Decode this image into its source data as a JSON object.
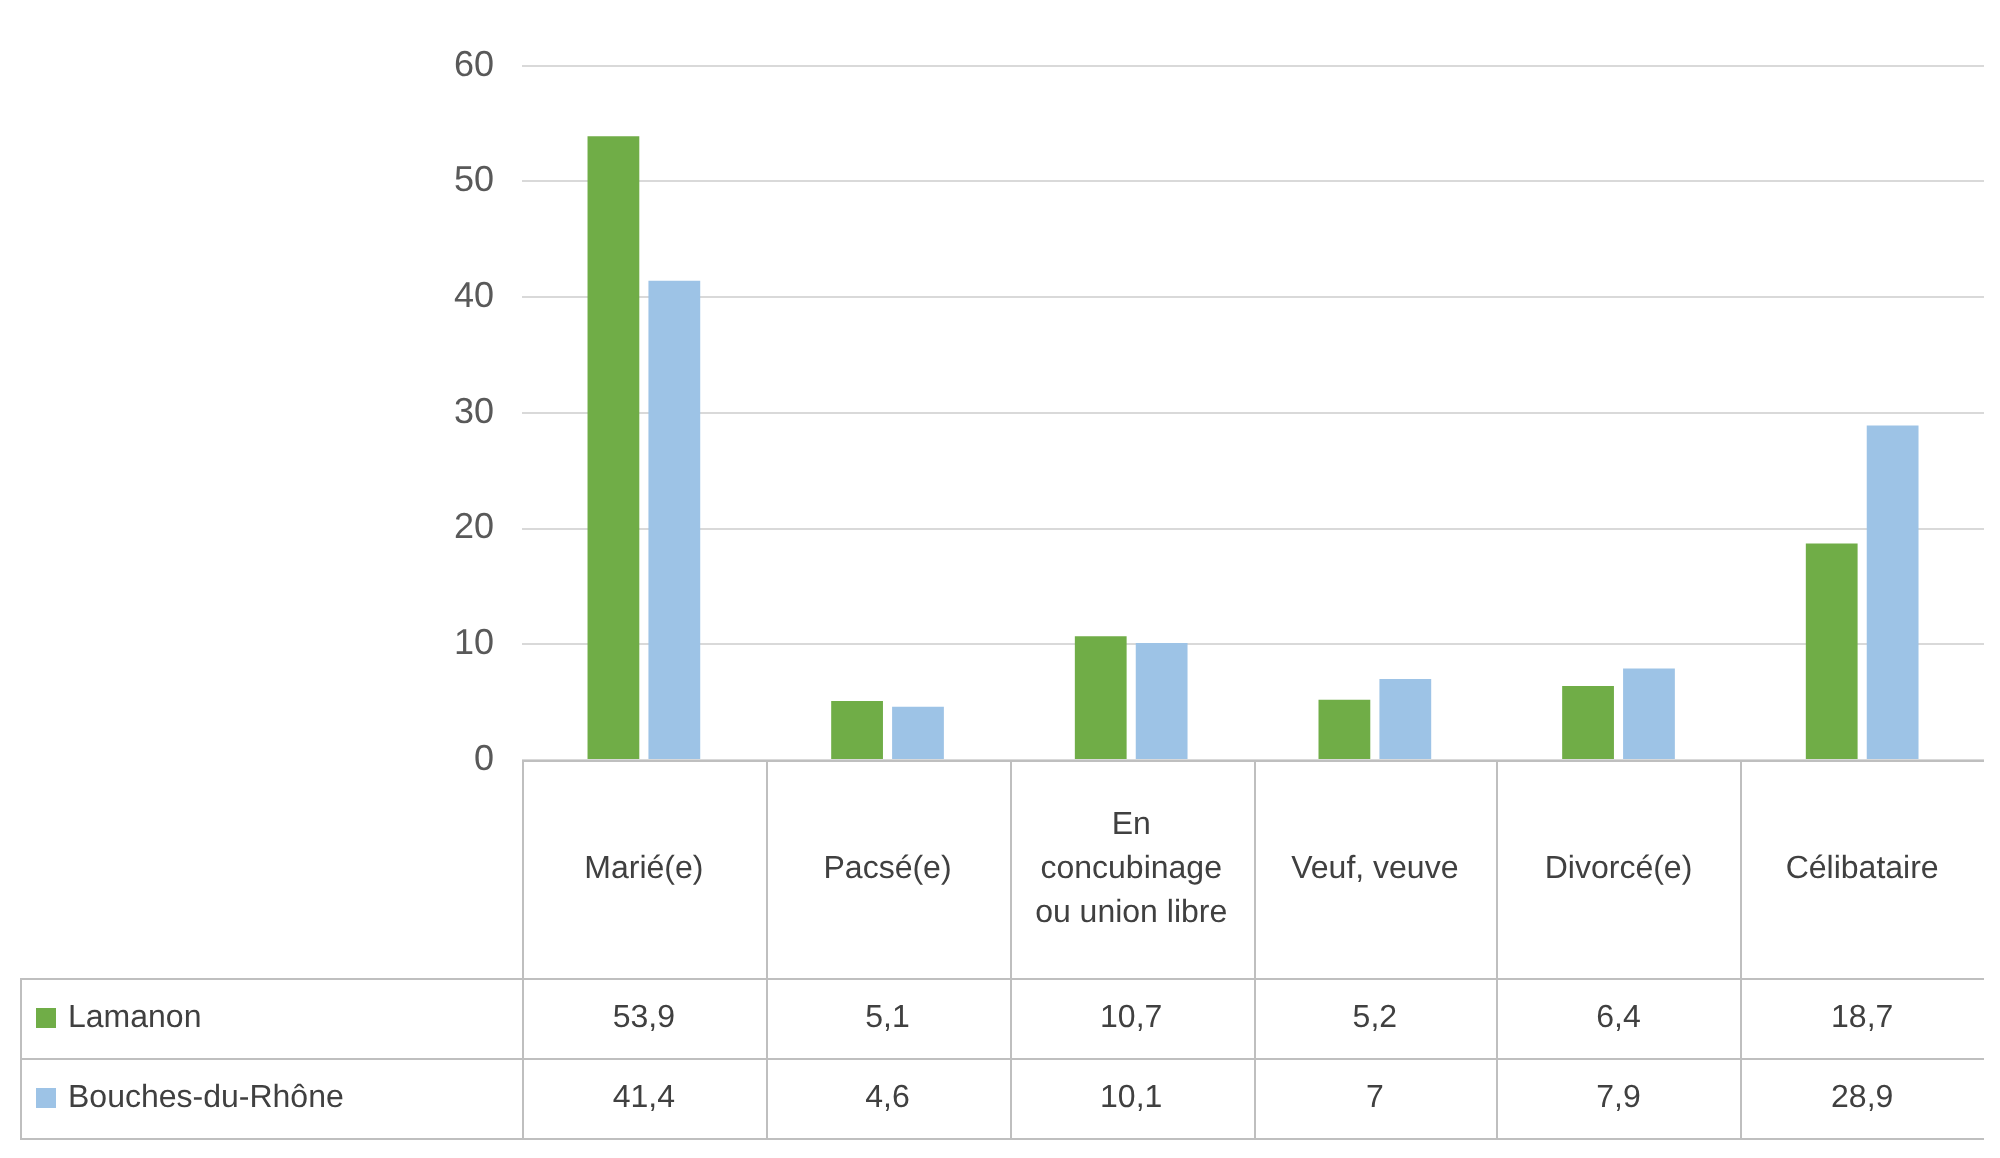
{
  "chart_data": {
    "type": "bar",
    "categories": [
      "Marié(e)",
      "Pacsé(e)",
      "En concubinage ou union libre",
      "Veuf, veuve",
      "Divorcé(e)",
      "Célibataire"
    ],
    "series": [
      {
        "name": "Lamanon",
        "color": "#70ad47",
        "values": [
          53.9,
          5.1,
          10.7,
          5.2,
          6.4,
          18.7
        ],
        "value_labels": [
          "53,9",
          "5,1",
          "10,7",
          "5,2",
          "6,4",
          "18,7"
        ]
      },
      {
        "name": "Bouches-du-Rhône",
        "color": "#9dc3e6",
        "values": [
          41.4,
          4.6,
          10.1,
          7,
          7.9,
          28.9
        ],
        "value_labels": [
          "41,4",
          "4,6",
          "10,1",
          "7",
          "7,9",
          "28,9"
        ]
      }
    ],
    "ylim": [
      0,
      60
    ],
    "yticks": [
      0,
      10,
      20,
      30,
      40,
      50,
      60
    ],
    "grid": "y",
    "legend": "bottom"
  }
}
